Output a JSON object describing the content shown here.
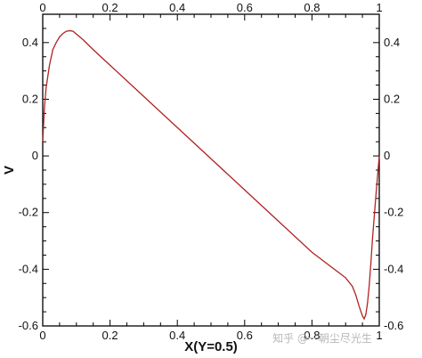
{
  "chart_data": {
    "type": "line",
    "xlabel": "X(Y=0.5)",
    "ylabel": "V",
    "xlim": [
      0,
      1
    ],
    "ylim": [
      -0.6,
      0.5
    ],
    "x_ticks": [
      0,
      0.2,
      0.4,
      0.6,
      0.8,
      1
    ],
    "x_tick_labels": [
      "0",
      "0.2",
      "0.4",
      "0.6",
      "0.8",
      "1"
    ],
    "y_ticks": [
      -0.6,
      -0.4,
      -0.2,
      0,
      0.2,
      0.4
    ],
    "y_tick_labels": [
      "-0.6",
      "-0.4",
      "-0.2",
      "0",
      "0.2",
      "0.4"
    ],
    "grid": false,
    "legend": "none",
    "line_color": "#b22222",
    "series": [
      {
        "x": [
          0,
          0.005,
          0.01,
          0.02,
          0.03,
          0.04,
          0.05,
          0.06,
          0.07,
          0.08,
          0.09,
          0.1,
          0.12,
          0.15,
          0.2,
          0.3,
          0.4,
          0.5,
          0.6,
          0.7,
          0.8,
          0.85,
          0.9,
          0.92,
          0.93,
          0.94,
          0.95,
          0.955,
          0.96,
          0.965,
          0.97,
          0.975,
          0.98,
          0.99,
          1.0
        ],
        "y": [
          0.05,
          0.17,
          0.24,
          0.32,
          0.375,
          0.4,
          0.42,
          0.432,
          0.44,
          0.442,
          0.44,
          0.43,
          0.41,
          0.375,
          0.32,
          0.21,
          0.1,
          -0.01,
          -0.12,
          -0.23,
          -0.34,
          -0.385,
          -0.43,
          -0.46,
          -0.49,
          -0.53,
          -0.565,
          -0.575,
          -0.56,
          -0.52,
          -0.46,
          -0.38,
          -0.29,
          -0.14,
          0.0
        ]
      }
    ],
    "watermark": "知乎 @一朝尘尽光生"
  }
}
